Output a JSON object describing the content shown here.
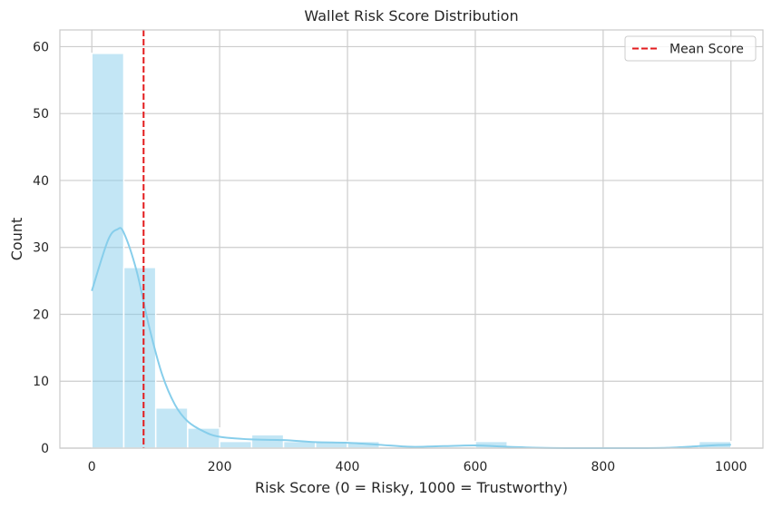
{
  "chart_data": {
    "type": "histogram",
    "title": "Wallet Risk Score Distribution",
    "xlabel": "Risk Score (0 = Risky, 1000 = Trustworthy)",
    "ylabel": "Count",
    "xlim": [
      -50,
      1050
    ],
    "ylim": [
      0,
      62.5
    ],
    "x_ticks": [
      0,
      200,
      400,
      600,
      800,
      1000
    ],
    "y_ticks": [
      0,
      10,
      20,
      30,
      40,
      50,
      60
    ],
    "grid": true,
    "bin_width": 50,
    "bins": [
      {
        "x0": 0,
        "x1": 50,
        "count": 59
      },
      {
        "x0": 50,
        "x1": 100,
        "count": 27
      },
      {
        "x0": 100,
        "x1": 150,
        "count": 6
      },
      {
        "x0": 150,
        "x1": 200,
        "count": 3
      },
      {
        "x0": 200,
        "x1": 250,
        "count": 1
      },
      {
        "x0": 250,
        "x1": 300,
        "count": 2
      },
      {
        "x0": 300,
        "x1": 350,
        "count": 1
      },
      {
        "x0": 350,
        "x1": 400,
        "count": 1
      },
      {
        "x0": 400,
        "x1": 450,
        "count": 1
      },
      {
        "x0": 450,
        "x1": 500,
        "count": 0
      },
      {
        "x0": 500,
        "x1": 550,
        "count": 0
      },
      {
        "x0": 550,
        "x1": 600,
        "count": 0
      },
      {
        "x0": 600,
        "x1": 650,
        "count": 1
      },
      {
        "x0": 650,
        "x1": 700,
        "count": 0
      },
      {
        "x0": 700,
        "x1": 750,
        "count": 0
      },
      {
        "x0": 750,
        "x1": 800,
        "count": 0
      },
      {
        "x0": 800,
        "x1": 850,
        "count": 0
      },
      {
        "x0": 850,
        "x1": 900,
        "count": 0
      },
      {
        "x0": 900,
        "x1": 950,
        "count": 0
      },
      {
        "x0": 950,
        "x1": 1000,
        "count": 1
      }
    ],
    "kde": {
      "x": [
        0,
        25,
        40,
        50,
        70,
        90,
        110,
        130,
        150,
        175,
        200,
        250,
        300,
        350,
        400,
        450,
        500,
        550,
        600,
        650,
        700,
        750,
        800,
        850,
        900,
        950,
        980,
        1000
      ],
      "y": [
        23.5,
        31,
        32.7,
        32.2,
        26.5,
        18,
        11,
        6.5,
        4,
        2.5,
        1.7,
        1.3,
        1.2,
        0.9,
        0.8,
        0.5,
        0.2,
        0.3,
        0.4,
        0.2,
        0.05,
        0,
        0,
        0,
        0.05,
        0.3,
        0.45,
        0.5
      ]
    },
    "mean_line": {
      "x": 81,
      "label": "Mean Score",
      "color": "#e31a1c"
    },
    "legend": {
      "position": "top-right",
      "entries": [
        "Mean Score"
      ]
    },
    "colors": {
      "bars": "#87ceeb",
      "kde": "#87ceeb",
      "mean": "#e31a1c",
      "grid": "#cccccc",
      "axis": "#cccccc"
    }
  }
}
